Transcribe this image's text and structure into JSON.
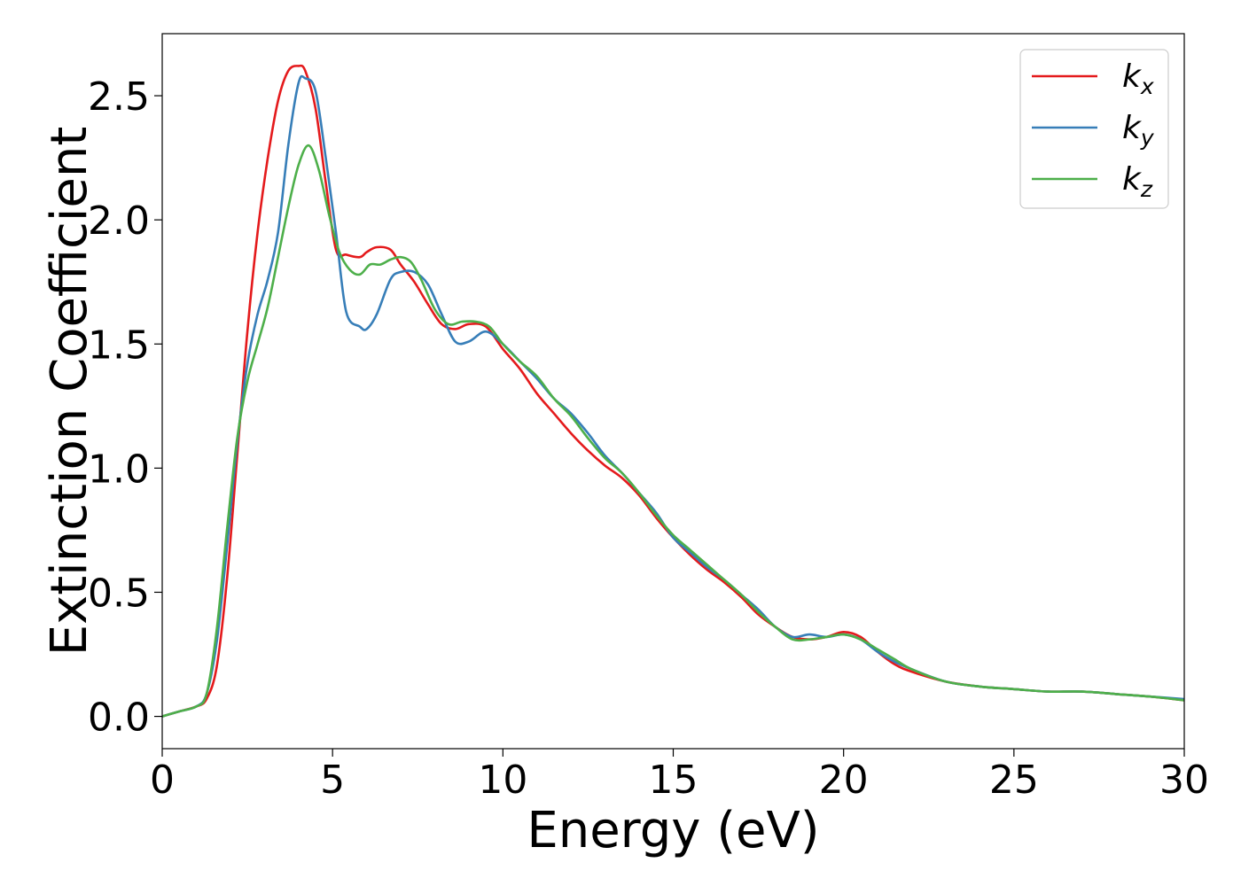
{
  "chart_data": {
    "type": "line",
    "title": "",
    "xlabel": "Energy (eV)",
    "ylabel": "Extinction Coefficient",
    "xlim": [
      0,
      30
    ],
    "ylim": [
      -0.13,
      2.75
    ],
    "xticks": [
      0,
      5,
      10,
      15,
      20,
      25,
      30
    ],
    "xtick_labels": [
      "0",
      "5",
      "10",
      "15",
      "20",
      "25",
      "30"
    ],
    "yticks": [
      0.0,
      0.5,
      1.0,
      1.5,
      2.0,
      2.5
    ],
    "ytick_labels": [
      "0.0",
      "0.5",
      "1.0",
      "1.5",
      "2.0",
      "2.5"
    ],
    "grid": false,
    "legend_position": "top-right",
    "series": [
      {
        "name": "k",
        "subscript": "x",
        "color": "#e41a1c",
        "x": [
          0,
          0.5,
          1.0,
          1.3,
          1.6,
          1.9,
          2.2,
          2.5,
          2.8,
          3.1,
          3.4,
          3.7,
          4.0,
          4.2,
          4.5,
          4.8,
          5.1,
          5.4,
          5.8,
          6.0,
          6.3,
          6.7,
          7.0,
          7.4,
          7.8,
          8.2,
          8.6,
          9.0,
          9.5,
          10.0,
          10.5,
          11.0,
          11.5,
          12.0,
          12.5,
          13.0,
          13.5,
          14.0,
          14.5,
          15.0,
          15.5,
          16.0,
          16.5,
          17.0,
          17.5,
          18.0,
          18.5,
          19.0,
          19.5,
          20.0,
          20.5,
          21.0,
          21.5,
          22.0,
          23.0,
          24.0,
          25.0,
          26.0,
          27.0,
          28.0,
          29.0,
          30.0
        ],
        "values": [
          0.0,
          0.02,
          0.04,
          0.07,
          0.2,
          0.55,
          1.05,
          1.55,
          1.95,
          2.25,
          2.48,
          2.6,
          2.62,
          2.6,
          2.45,
          2.15,
          1.88,
          1.86,
          1.85,
          1.87,
          1.89,
          1.88,
          1.82,
          1.75,
          1.66,
          1.58,
          1.56,
          1.58,
          1.57,
          1.48,
          1.4,
          1.3,
          1.22,
          1.14,
          1.07,
          1.01,
          0.96,
          0.89,
          0.8,
          0.72,
          0.65,
          0.59,
          0.54,
          0.48,
          0.41,
          0.36,
          0.32,
          0.31,
          0.32,
          0.34,
          0.32,
          0.26,
          0.21,
          0.18,
          0.14,
          0.12,
          0.11,
          0.1,
          0.1,
          0.09,
          0.08,
          0.065
        ]
      },
      {
        "name": "k",
        "subscript": "y",
        "color": "#377eb8",
        "x": [
          0,
          0.5,
          1.0,
          1.3,
          1.6,
          1.9,
          2.2,
          2.5,
          2.8,
          3.1,
          3.4,
          3.7,
          4.0,
          4.2,
          4.5,
          4.8,
          5.1,
          5.4,
          5.8,
          6.0,
          6.3,
          6.7,
          7.0,
          7.4,
          7.8,
          8.2,
          8.6,
          9.0,
          9.5,
          10.0,
          10.5,
          11.0,
          11.5,
          12.0,
          12.5,
          13.0,
          13.5,
          14.0,
          14.5,
          15.0,
          15.5,
          16.0,
          16.5,
          17.0,
          17.5,
          18.0,
          18.5,
          19.0,
          19.5,
          20.0,
          20.5,
          21.0,
          21.5,
          22.0,
          23.0,
          24.0,
          25.0,
          26.0,
          27.0,
          28.0,
          29.0,
          30.0
        ],
        "values": [
          0.0,
          0.02,
          0.04,
          0.09,
          0.3,
          0.68,
          1.1,
          1.42,
          1.62,
          1.76,
          1.95,
          2.3,
          2.55,
          2.57,
          2.52,
          2.25,
          1.95,
          1.63,
          1.57,
          1.56,
          1.62,
          1.76,
          1.79,
          1.79,
          1.74,
          1.62,
          1.51,
          1.51,
          1.55,
          1.5,
          1.43,
          1.36,
          1.28,
          1.22,
          1.14,
          1.05,
          0.98,
          0.9,
          0.82,
          0.72,
          0.66,
          0.6,
          0.55,
          0.49,
          0.43,
          0.36,
          0.32,
          0.33,
          0.32,
          0.33,
          0.31,
          0.26,
          0.22,
          0.19,
          0.14,
          0.12,
          0.11,
          0.1,
          0.1,
          0.09,
          0.08,
          0.07
        ]
      },
      {
        "name": "k",
        "subscript": "z",
        "color": "#4daf4a",
        "x": [
          0,
          0.5,
          1.0,
          1.3,
          1.6,
          1.9,
          2.2,
          2.5,
          2.8,
          3.1,
          3.4,
          3.7,
          4.0,
          4.3,
          4.6,
          4.9,
          5.2,
          5.5,
          5.8,
          6.1,
          6.4,
          6.7,
          7.0,
          7.3,
          7.6,
          8.0,
          8.4,
          8.8,
          9.2,
          9.6,
          10.0,
          10.5,
          11.0,
          11.5,
          12.0,
          12.5,
          13.0,
          13.5,
          14.0,
          14.5,
          15.0,
          15.5,
          16.0,
          16.5,
          17.0,
          17.5,
          18.0,
          18.5,
          19.0,
          19.5,
          20.0,
          20.5,
          21.0,
          21.5,
          22.0,
          23.0,
          24.0,
          25.0,
          26.0,
          27.0,
          28.0,
          29.0,
          30.0
        ],
        "values": [
          0.0,
          0.02,
          0.04,
          0.09,
          0.35,
          0.75,
          1.12,
          1.35,
          1.5,
          1.65,
          1.85,
          2.05,
          2.22,
          2.3,
          2.2,
          2.02,
          1.87,
          1.8,
          1.78,
          1.82,
          1.82,
          1.84,
          1.85,
          1.83,
          1.76,
          1.64,
          1.58,
          1.59,
          1.59,
          1.57,
          1.5,
          1.43,
          1.37,
          1.28,
          1.21,
          1.12,
          1.04,
          0.98,
          0.9,
          0.81,
          0.73,
          0.67,
          0.61,
          0.55,
          0.49,
          0.42,
          0.36,
          0.31,
          0.31,
          0.32,
          0.33,
          0.31,
          0.27,
          0.23,
          0.19,
          0.14,
          0.12,
          0.11,
          0.1,
          0.1,
          0.09,
          0.08,
          0.065
        ]
      }
    ]
  }
}
